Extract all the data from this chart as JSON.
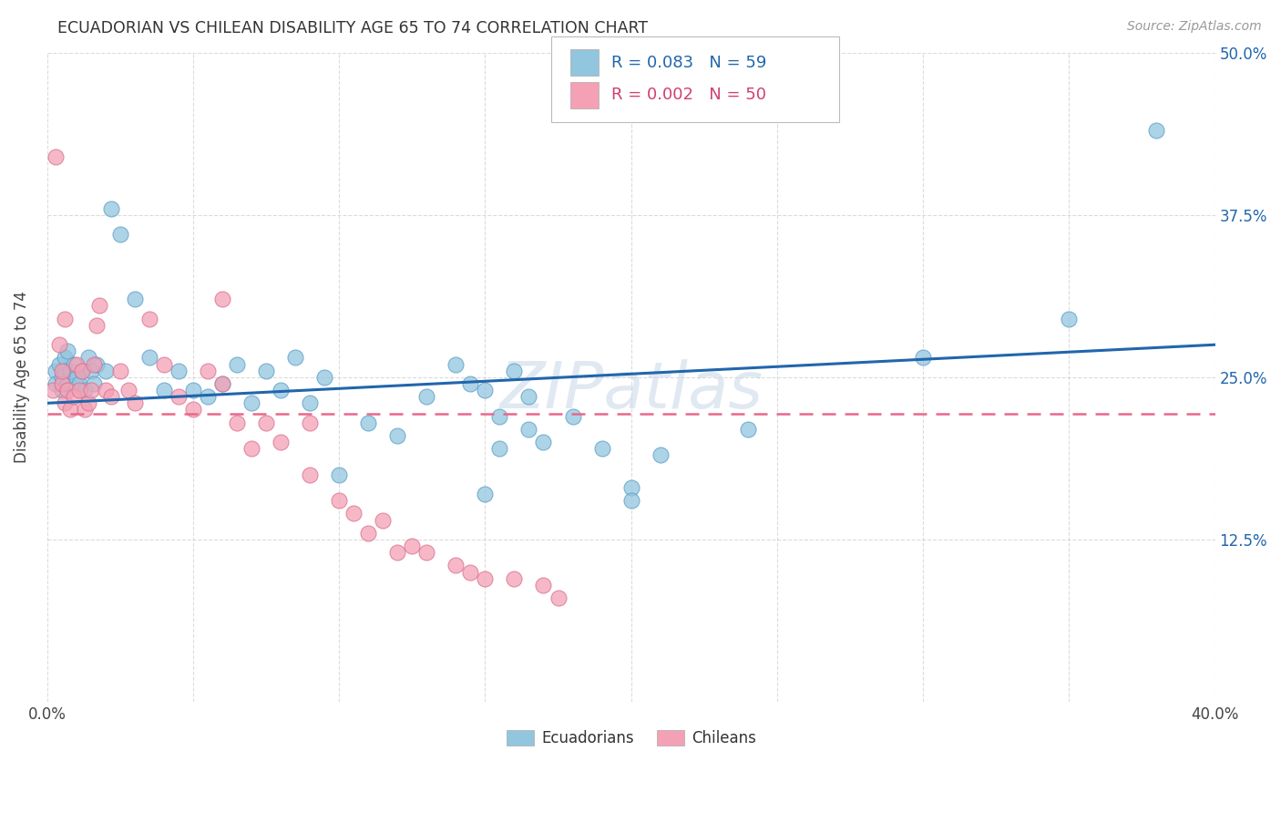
{
  "title": "ECUADORIAN VS CHILEAN DISABILITY AGE 65 TO 74 CORRELATION CHART",
  "source": "Source: ZipAtlas.com",
  "ylabel": "Disability Age 65 to 74",
  "xmin": 0.0,
  "xmax": 0.4,
  "ymin": 0.0,
  "ymax": 0.5,
  "xticks": [
    0.0,
    0.05,
    0.1,
    0.15,
    0.2,
    0.25,
    0.3,
    0.35,
    0.4
  ],
  "yticks": [
    0.0,
    0.125,
    0.25,
    0.375,
    0.5
  ],
  "ytick_labels": [
    "",
    "12.5%",
    "25.0%",
    "37.5%",
    "50.0%"
  ],
  "legend_r_ecu": "R = 0.083",
  "legend_n_ecu": "N = 59",
  "legend_r_chi": "R = 0.002",
  "legend_n_chi": "N = 50",
  "ecu_color": "#92c5de",
  "chi_color": "#f4a0b5",
  "ecu_line_color": "#2166ac",
  "chi_line_color": "#e8688a",
  "background_color": "#ffffff",
  "grid_color": "#cccccc",
  "watermark": "ZIPatlas",
  "ecu_R": 0.083,
  "chi_R": 0.002,
  "ecu_points_x": [
    0.003,
    0.003,
    0.004,
    0.005,
    0.005,
    0.006,
    0.006,
    0.007,
    0.007,
    0.008,
    0.009,
    0.01,
    0.011,
    0.012,
    0.013,
    0.014,
    0.015,
    0.016,
    0.017,
    0.02,
    0.022,
    0.025,
    0.03,
    0.035,
    0.04,
    0.045,
    0.05,
    0.055,
    0.06,
    0.065,
    0.07,
    0.075,
    0.08,
    0.085,
    0.09,
    0.095,
    0.1,
    0.11,
    0.12,
    0.13,
    0.14,
    0.15,
    0.155,
    0.16,
    0.165,
    0.17,
    0.18,
    0.19,
    0.2,
    0.21,
    0.145,
    0.155,
    0.165,
    0.24,
    0.15,
    0.2,
    0.3,
    0.35,
    0.38
  ],
  "ecu_points_y": [
    0.255,
    0.245,
    0.26,
    0.25,
    0.24,
    0.265,
    0.255,
    0.27,
    0.245,
    0.255,
    0.26,
    0.25,
    0.245,
    0.255,
    0.24,
    0.265,
    0.255,
    0.245,
    0.26,
    0.255,
    0.38,
    0.36,
    0.31,
    0.265,
    0.24,
    0.255,
    0.24,
    0.235,
    0.245,
    0.26,
    0.23,
    0.255,
    0.24,
    0.265,
    0.23,
    0.25,
    0.175,
    0.215,
    0.205,
    0.235,
    0.26,
    0.24,
    0.22,
    0.255,
    0.235,
    0.2,
    0.22,
    0.195,
    0.165,
    0.19,
    0.245,
    0.195,
    0.21,
    0.21,
    0.16,
    0.155,
    0.265,
    0.295,
    0.44
  ],
  "chi_points_x": [
    0.002,
    0.003,
    0.004,
    0.005,
    0.005,
    0.006,
    0.006,
    0.007,
    0.008,
    0.009,
    0.01,
    0.011,
    0.012,
    0.013,
    0.014,
    0.015,
    0.016,
    0.017,
    0.018,
    0.02,
    0.022,
    0.025,
    0.028,
    0.03,
    0.035,
    0.04,
    0.045,
    0.05,
    0.055,
    0.06,
    0.065,
    0.07,
    0.075,
    0.08,
    0.09,
    0.1,
    0.105,
    0.11,
    0.115,
    0.12,
    0.125,
    0.13,
    0.14,
    0.145,
    0.15,
    0.16,
    0.17,
    0.175,
    0.06,
    0.09
  ],
  "chi_points_y": [
    0.24,
    0.42,
    0.275,
    0.245,
    0.255,
    0.23,
    0.295,
    0.24,
    0.225,
    0.235,
    0.26,
    0.24,
    0.255,
    0.225,
    0.23,
    0.24,
    0.26,
    0.29,
    0.305,
    0.24,
    0.235,
    0.255,
    0.24,
    0.23,
    0.295,
    0.26,
    0.235,
    0.225,
    0.255,
    0.245,
    0.215,
    0.195,
    0.215,
    0.2,
    0.175,
    0.155,
    0.145,
    0.13,
    0.14,
    0.115,
    0.12,
    0.115,
    0.105,
    0.1,
    0.095,
    0.095,
    0.09,
    0.08,
    0.31,
    0.215
  ],
  "ecu_trend_x0": 0.0,
  "ecu_trend_x1": 0.4,
  "ecu_trend_y0": 0.23,
  "ecu_trend_y1": 0.275,
  "chi_trend_x0": 0.0,
  "chi_trend_x1": 0.4,
  "chi_trend_y0": 0.222,
  "chi_trend_y1": 0.222
}
